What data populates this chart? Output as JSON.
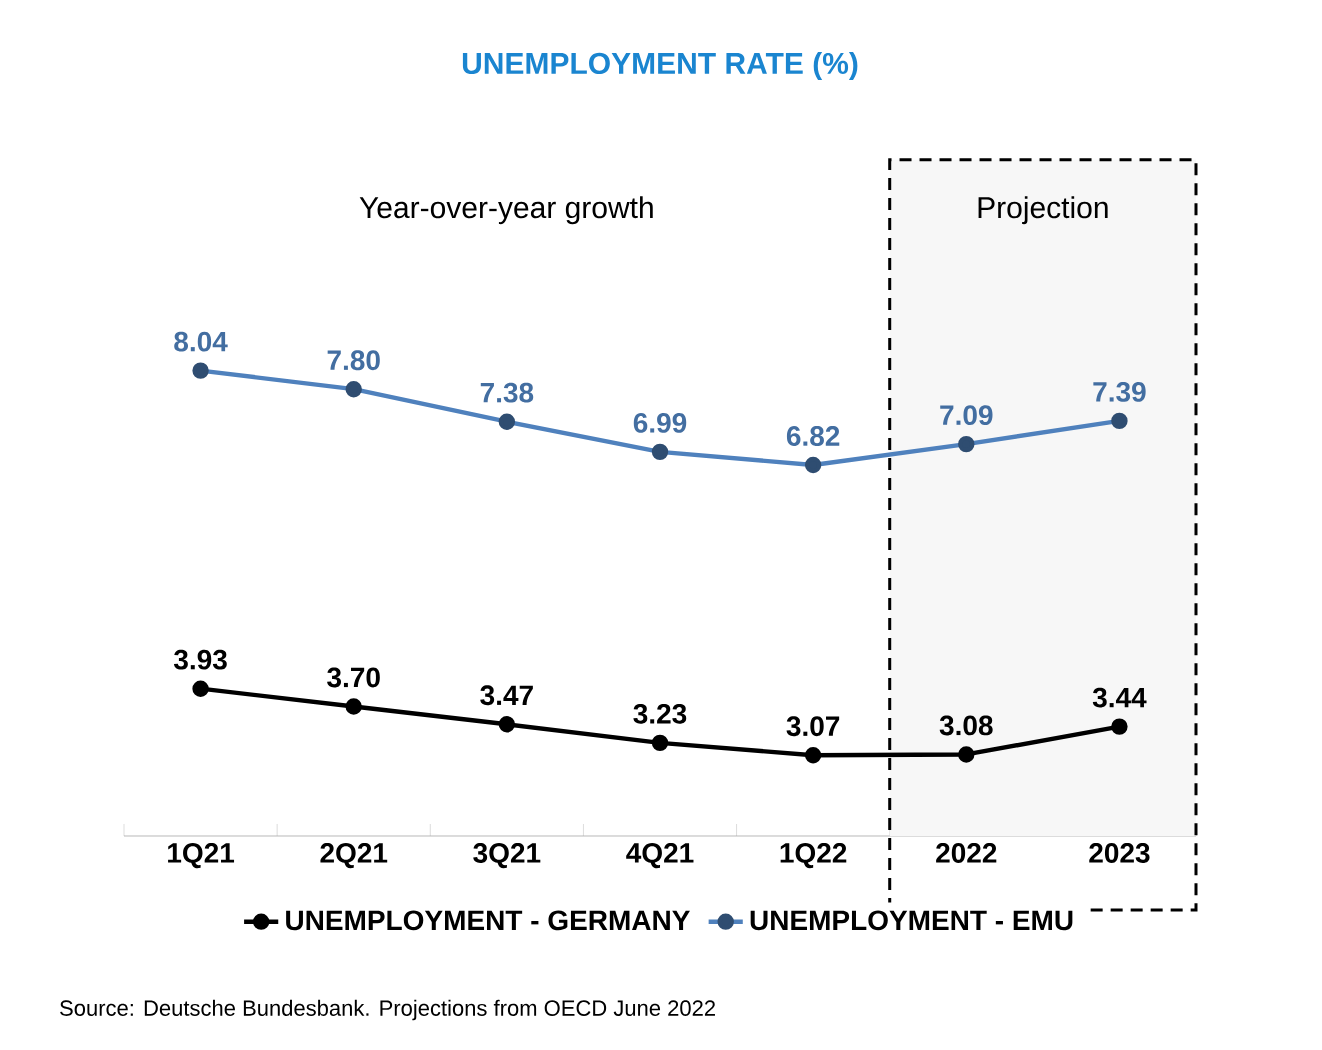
{
  "chart_data": {
    "type": "line",
    "title": "UNEMPLOYMENT RATE (%)",
    "categories": [
      "1Q21",
      "2Q21",
      "3Q21",
      "4Q21",
      "1Q22",
      "2022",
      "2023"
    ],
    "series": [
      {
        "name": "UNEMPLOYMENT - GERMANY",
        "color": "#000000",
        "values": [
          3.93,
          3.7,
          3.47,
          3.23,
          3.07,
          3.08,
          3.44
        ],
        "value_labels": [
          "3.93",
          "3.70",
          "3.47",
          "3.23",
          "3.07",
          "3.08",
          "3.44"
        ]
      },
      {
        "name": "UNEMPLOYMENT - EMU",
        "color": "#4f81bd",
        "values": [
          8.04,
          7.8,
          7.38,
          6.99,
          6.82,
          7.09,
          7.39
        ],
        "value_labels": [
          "8.04",
          "7.80",
          "7.38",
          "6.99",
          "6.82",
          "7.09",
          "7.39"
        ]
      }
    ],
    "marker": "circle",
    "line_style": "solid",
    "legend": "bottom",
    "tick_labels": "x",
    "grid": false,
    "bands": [
      {
        "axis": "x",
        "from": "2022",
        "to": "2023",
        "label": "Projection",
        "color": "#f7f7f7"
      }
    ],
    "annotations": [
      "Year-over-year growth",
      "Source: Deutsche Bundesbank. Projections from OECD June 2022"
    ]
  }
}
